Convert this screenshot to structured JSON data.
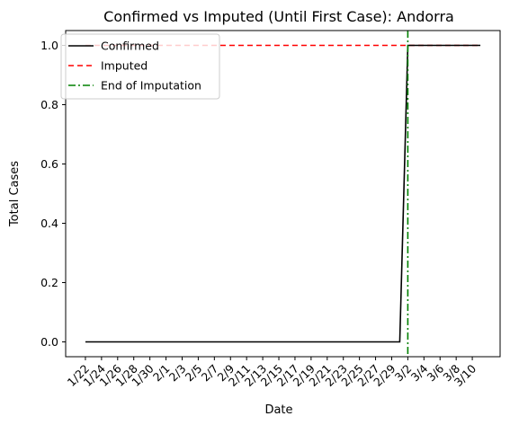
{
  "chart_data": {
    "type": "line",
    "title": "Confirmed vs Imputed (Until First Case): Andorra",
    "xlabel": "Date",
    "ylabel": "Total Cases",
    "x_tick_labels": [
      "1/22",
      "1/24",
      "1/26",
      "1/28",
      "1/30",
      "2/1",
      "2/3",
      "2/5",
      "2/7",
      "2/9",
      "2/11",
      "2/13",
      "2/15",
      "2/17",
      "2/19",
      "2/21",
      "2/23",
      "2/25",
      "2/27",
      "2/29",
      "3/2",
      "3/4",
      "3/6",
      "3/8",
      "3/10"
    ],
    "y_tick_labels": [
      "0.0",
      "0.2",
      "0.4",
      "0.6",
      "0.8",
      "1.0"
    ],
    "ylim": [
      -0.05,
      1.05
    ],
    "x_range": [
      "1/22",
      "3/11"
    ],
    "grid": false,
    "legend_position": "upper-left",
    "series": [
      {
        "name": "Confirmed",
        "style": "solid",
        "color": "#000000",
        "points": [
          [
            "1/22",
            0
          ],
          [
            "3/1",
            0
          ],
          [
            "3/2",
            1
          ],
          [
            "3/11",
            1
          ]
        ]
      },
      {
        "name": "Imputed",
        "style": "dashed",
        "color": "#ff0000",
        "points": [
          [
            "1/22",
            1
          ],
          [
            "3/11",
            1
          ]
        ]
      }
    ],
    "vlines": [
      {
        "name": "End of Imputation",
        "style": "dashdot",
        "color": "#008000",
        "x": "3/2"
      }
    ]
  }
}
